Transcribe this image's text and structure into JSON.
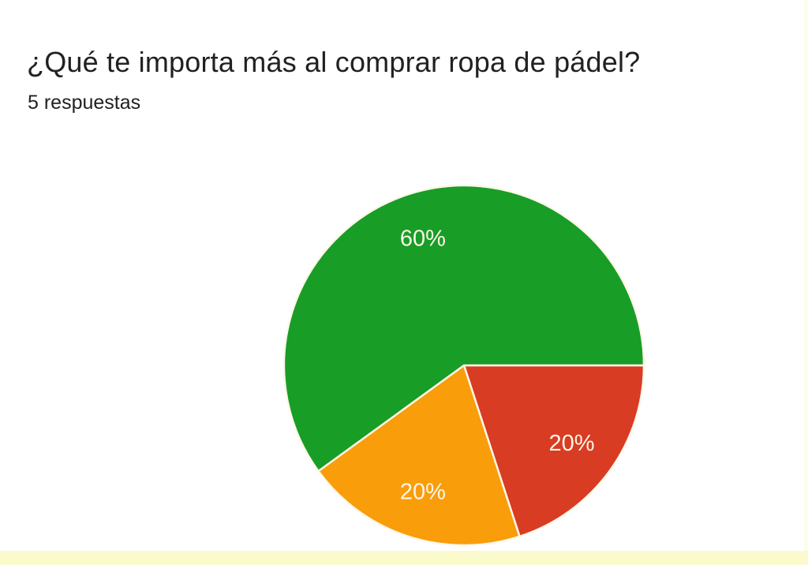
{
  "header": {
    "title": "¿Qué te importa más al comprar ropa de pádel?",
    "responses_count": "5 respuestas"
  },
  "chart_data": {
    "type": "pie",
    "title": "¿Qué te importa más al comprar ropa de pádel?",
    "subtitle": "5 respuestas",
    "total_responses": 5,
    "legend": "none",
    "start_angle_deg": 0,
    "slices": [
      {
        "name": "red",
        "label": "20%",
        "value": 20,
        "color": "#d83c23"
      },
      {
        "name": "orange",
        "label": "20%",
        "value": 20,
        "color": "#f99d0b"
      },
      {
        "name": "green",
        "label": "60%",
        "value": 60,
        "color": "#189d27"
      }
    ],
    "slice_border_color": "#fdf7e9",
    "label_color": "#fdf5e6"
  },
  "decor": {
    "bottom_strip_color": "#fafacd",
    "right_strip_color": "#fdfdeb"
  }
}
